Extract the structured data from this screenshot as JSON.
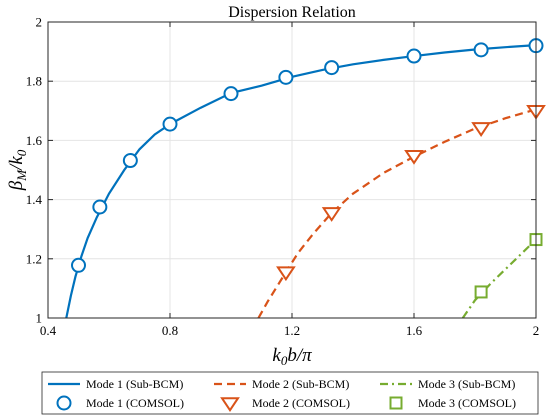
{
  "chart_data": {
    "type": "line",
    "title": "Dispersion Relation",
    "xlabel": "k₀b/π",
    "ylabel": "β_M/k₀",
    "xlim": [
      0.4,
      2.0
    ],
    "ylim": [
      1.0,
      2.0
    ],
    "x_ticks": [
      "0.4",
      "0.8",
      "1.2",
      "1.6",
      "2"
    ],
    "x_tick_values": [
      0.4,
      0.8,
      1.2,
      1.6,
      2.0
    ],
    "y_ticks": [
      "1",
      "1.2",
      "1.4",
      "1.6",
      "1.8",
      "2"
    ],
    "y_tick_values": [
      1.0,
      1.2,
      1.4,
      1.6,
      1.8,
      2.0
    ],
    "grid": true,
    "legend_position": "bottom",
    "series": [
      {
        "name": "Mode 1 (Sub-BCM)",
        "style": "solid",
        "color": "#0072BD",
        "x": [
          0.46,
          0.475,
          0.49,
          0.51,
          0.53,
          0.56,
          0.6,
          0.65,
          0.7,
          0.75,
          0.8,
          0.9,
          1.0,
          1.1,
          1.2,
          1.3,
          1.4,
          1.5,
          1.6,
          1.7,
          1.8,
          1.9,
          2.0
        ],
        "y": [
          1.0,
          1.075,
          1.14,
          1.21,
          1.27,
          1.34,
          1.42,
          1.5,
          1.57,
          1.62,
          1.655,
          1.71,
          1.76,
          1.785,
          1.815,
          1.838,
          1.857,
          1.872,
          1.885,
          1.897,
          1.907,
          1.915,
          1.922
        ]
      },
      {
        "name": "Mode 1 (COMSOL)",
        "marker": "circle",
        "color": "#0072BD",
        "x": [
          0.5,
          0.57,
          0.67,
          0.8,
          1.0,
          1.18,
          1.33,
          1.6,
          1.82,
          2.0
        ],
        "y": [
          1.178,
          1.375,
          1.532,
          1.655,
          1.758,
          1.813,
          1.846,
          1.885,
          1.906,
          1.92
        ]
      },
      {
        "name": "Mode 2 (Sub-BCM)",
        "style": "dashed",
        "color": "#D95319",
        "x": [
          1.09,
          1.12,
          1.15,
          1.18,
          1.22,
          1.27,
          1.33,
          1.4,
          1.5,
          1.6,
          1.7,
          1.8,
          1.9,
          2.0
        ],
        "y": [
          1.0,
          1.055,
          1.105,
          1.155,
          1.22,
          1.285,
          1.355,
          1.42,
          1.49,
          1.545,
          1.595,
          1.64,
          1.675,
          1.705
        ]
      },
      {
        "name": "Mode 2 (COMSOL)",
        "marker": "triangle-down",
        "color": "#D95319",
        "x": [
          1.18,
          1.33,
          1.6,
          1.82,
          2.0
        ],
        "y": [
          1.155,
          1.355,
          1.548,
          1.642,
          1.7
        ]
      },
      {
        "name": "Mode 3 (Sub-BCM)",
        "style": "dashdot",
        "color": "#77AC30",
        "x": [
          1.76,
          1.8,
          1.85,
          1.9,
          1.95,
          2.0
        ],
        "y": [
          1.0,
          1.06,
          1.115,
          1.165,
          1.215,
          1.265
        ]
      },
      {
        "name": "Mode 3 (COMSOL)",
        "marker": "square",
        "color": "#77AC30",
        "x": [
          1.82,
          2.0
        ],
        "y": [
          1.088,
          1.265
        ]
      }
    ]
  }
}
